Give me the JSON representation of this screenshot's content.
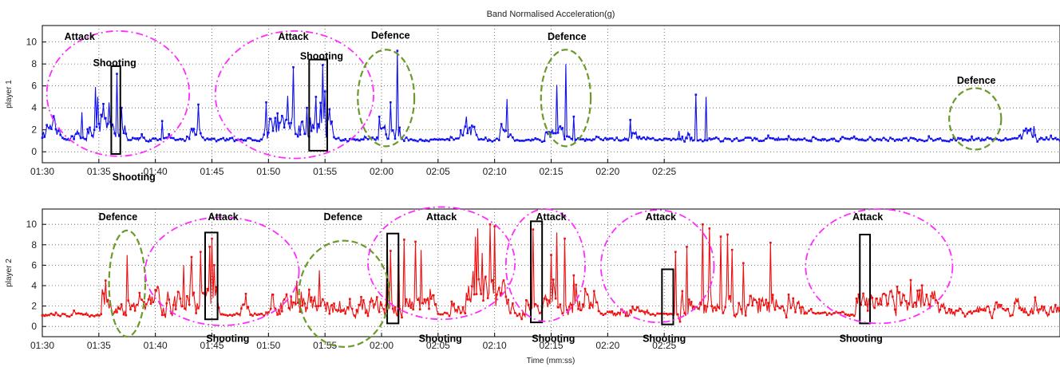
{
  "figure": {
    "title": "Band Normalised Acceleration(g)",
    "xlabel": "Time (mm:ss)"
  },
  "chart_data": [
    {
      "type": "line",
      "ylabel": "player 1",
      "color": "#1010ee",
      "xlim": [
        90,
        180
      ],
      "ylim": [
        -1,
        11.5
      ],
      "yticks": [
        0,
        2,
        4,
        6,
        8,
        10
      ],
      "xticks": [
        "01:30",
        "01:35",
        "01:40",
        "01:45",
        "01:50",
        "01:55",
        "02:00",
        "02:05",
        "02:10",
        "02:15",
        "02:20",
        "02:25"
      ],
      "grid": true,
      "seed": 7,
      "baseline": 1.1,
      "noise": 0.35,
      "bursts": [
        {
          "from": 90,
          "to": 91.6,
          "level": 2.0,
          "amp": 1.6
        },
        {
          "from": 92.6,
          "to": 93.2,
          "level": 1.6,
          "amp": 1.0
        },
        {
          "from": 94,
          "to": 96.5,
          "level": 2.0,
          "amp": 2.0
        },
        {
          "from": 96.5,
          "to": 97.5,
          "level": 2.2,
          "amp": 2.2
        },
        {
          "from": 103,
          "to": 104,
          "level": 1.8,
          "amp": 1.2
        },
        {
          "from": 109.5,
          "to": 114,
          "level": 2.2,
          "amp": 2.2
        },
        {
          "from": 114,
          "to": 115.6,
          "level": 2.5,
          "amp": 2.5
        },
        {
          "from": 119.5,
          "to": 121.4,
          "level": 1.8,
          "amp": 1.6
        },
        {
          "from": 127,
          "to": 128.3,
          "level": 1.8,
          "amp": 1.2
        },
        {
          "from": 130.5,
          "to": 131.3,
          "level": 1.6,
          "amp": 1.0
        },
        {
          "from": 134.5,
          "to": 136.3,
          "level": 1.6,
          "amp": 1.2
        },
        {
          "from": 142,
          "to": 142.5,
          "level": 1.6,
          "amp": 0.8
        },
        {
          "from": 146.5,
          "to": 147.5,
          "level": 1.5,
          "amp": 1.4
        },
        {
          "from": 176.5,
          "to": 178,
          "level": 1.5,
          "amp": 1.2
        }
      ],
      "spikes": [
        {
          "t": 94.7,
          "v": 5.9
        },
        {
          "t": 94.9,
          "v": 5.0
        },
        {
          "t": 93.5,
          "v": 3.6
        },
        {
          "t": 96.6,
          "v": 7.1
        },
        {
          "t": 97.0,
          "v": 4.0
        },
        {
          "t": 100.6,
          "v": 2.8
        },
        {
          "t": 103.8,
          "v": 4.3
        },
        {
          "t": 109.8,
          "v": 4.5
        },
        {
          "t": 110.8,
          "v": 3.5
        },
        {
          "t": 111.7,
          "v": 5.1
        },
        {
          "t": 112.2,
          "v": 7.7
        },
        {
          "t": 113.4,
          "v": 4.0
        },
        {
          "t": 114.2,
          "v": 5.0
        },
        {
          "t": 114.8,
          "v": 7.9
        },
        {
          "t": 115.0,
          "v": 5.5
        },
        {
          "t": 120.8,
          "v": 4.5
        },
        {
          "t": 121.4,
          "v": 9.2
        },
        {
          "t": 121.6,
          "v": 2.2
        },
        {
          "t": 127.5,
          "v": 3.2
        },
        {
          "t": 131.1,
          "v": 4.8
        },
        {
          "t": 135.5,
          "v": 6.1
        },
        {
          "t": 136.3,
          "v": 8.0
        },
        {
          "t": 137.0,
          "v": 3.2
        },
        {
          "t": 142.0,
          "v": 2.9
        },
        {
          "t": 146.3,
          "v": 1.9
        },
        {
          "t": 147.8,
          "v": 5.2
        },
        {
          "t": 148.7,
          "v": 5.0
        }
      ],
      "annotations": [
        {
          "text": "Attack",
          "t": 93.3,
          "v": 10.2
        },
        {
          "text": "Shooting",
          "t": 96.4,
          "v": 7.8
        },
        {
          "text": "Shooting",
          "t": 98.1,
          "v": -2.6
        },
        {
          "text": "Attack",
          "t": 112.2,
          "v": 10.2
        },
        {
          "text": "Shooting",
          "t": 114.7,
          "v": 8.4
        },
        {
          "text": "Defence",
          "t": 120.8,
          "v": 10.3
        },
        {
          "text": "Defence",
          "t": 136.4,
          "v": 10.2
        },
        {
          "text": "Defence",
          "t": 172.6,
          "v": 6.2
        }
      ],
      "ellipses": [
        {
          "kind": "attack",
          "t": 96.7,
          "v": 5.3,
          "rt": 6.3,
          "rv": 5.7
        },
        {
          "kind": "attack",
          "t": 112.3,
          "v": 5.2,
          "rt": 7.0,
          "rv": 5.8
        },
        {
          "kind": "defence",
          "t": 120.4,
          "v": 4.9,
          "rt": 2.5,
          "rv": 4.4
        },
        {
          "kind": "defence",
          "t": 136.3,
          "v": 4.9,
          "rt": 2.2,
          "rv": 4.4
        },
        {
          "kind": "defence",
          "t": 172.5,
          "v": 3.0,
          "rt": 2.3,
          "rv": 2.8
        }
      ],
      "boxes": [
        {
          "t0": 96.1,
          "t1": 96.9,
          "v0": -0.2,
          "v1": 7.8
        },
        {
          "t0": 113.6,
          "t1": 115.2,
          "v0": 0.1,
          "v1": 8.4
        }
      ]
    },
    {
      "type": "line",
      "ylabel": "player 2",
      "color": "#ee1010",
      "xlim": [
        90,
        180
      ],
      "ylim": [
        -1,
        11.5
      ],
      "yticks": [
        0,
        2,
        4,
        6,
        8,
        10
      ],
      "xticks": [
        "01:30",
        "01:35",
        "01:40",
        "01:45",
        "01:50",
        "01:55",
        "02:00",
        "02:05",
        "02:10",
        "02:15",
        "02:20",
        "02:25"
      ],
      "grid": true,
      "seed": 13,
      "baseline": 1.15,
      "noise": 0.35,
      "bursts": [
        {
          "from": 95.3,
          "to": 96.0,
          "level": 2.2,
          "amp": 2.2
        },
        {
          "from": 96.0,
          "to": 99.0,
          "level": 1.7,
          "amp": 1.4
        },
        {
          "from": 99.2,
          "to": 105.5,
          "level": 2.5,
          "amp": 2.8
        },
        {
          "from": 107.5,
          "to": 108.5,
          "level": 1.6,
          "amp": 1.4
        },
        {
          "from": 110,
          "to": 116.5,
          "level": 2.0,
          "amp": 2.0
        },
        {
          "from": 116.5,
          "to": 119,
          "level": 1.6,
          "amp": 1.6
        },
        {
          "from": 119,
          "to": 125,
          "level": 1.9,
          "amp": 2.2
        },
        {
          "from": 126.2,
          "to": 127.2,
          "level": 1.6,
          "amp": 1.3
        },
        {
          "from": 127.5,
          "to": 131,
          "level": 3.4,
          "amp": 3.2
        },
        {
          "from": 131,
          "to": 133.8,
          "level": 1.6,
          "amp": 1.6
        },
        {
          "from": 134.2,
          "to": 139.3,
          "level": 1.9,
          "amp": 2.2
        },
        {
          "from": 140,
          "to": 143.5,
          "level": 1.4,
          "amp": 1.1
        },
        {
          "from": 146,
          "to": 150.8,
          "level": 1.8,
          "amp": 2.2
        },
        {
          "from": 150.8,
          "to": 155,
          "level": 1.9,
          "amp": 2.4
        },
        {
          "from": 155,
          "to": 158,
          "level": 1.6,
          "amp": 1.5
        },
        {
          "from": 162,
          "to": 169.6,
          "level": 2.3,
          "amp": 2.6
        },
        {
          "from": 169.6,
          "to": 180,
          "level": 1.5,
          "amp": 1.2
        }
      ],
      "spikes": [
        {
          "t": 95.6,
          "v": 4.5
        },
        {
          "t": 97.5,
          "v": 7.0
        },
        {
          "t": 102.5,
          "v": 6.0
        },
        {
          "t": 103.2,
          "v": 6.8
        },
        {
          "t": 104.0,
          "v": 7.3
        },
        {
          "t": 104.8,
          "v": 7.8
        },
        {
          "t": 105.0,
          "v": 8.6
        },
        {
          "t": 105.2,
          "v": 6.0
        },
        {
          "t": 108.0,
          "v": 3.2
        },
        {
          "t": 112.5,
          "v": 4.5
        },
        {
          "t": 114.5,
          "v": 5.5
        },
        {
          "t": 120.5,
          "v": 8.6
        },
        {
          "t": 120.8,
          "v": 7.4
        },
        {
          "t": 121.5,
          "v": 8.2
        },
        {
          "t": 122.0,
          "v": 8.5
        },
        {
          "t": 123.0,
          "v": 8.3
        },
        {
          "t": 123.5,
          "v": 7.5
        },
        {
          "t": 128.3,
          "v": 8.8
        },
        {
          "t": 128.5,
          "v": 9.6
        },
        {
          "t": 128.9,
          "v": 7.2
        },
        {
          "t": 129.6,
          "v": 10.0
        },
        {
          "t": 130.0,
          "v": 9.8
        },
        {
          "t": 133.4,
          "v": 9.5
        },
        {
          "t": 135.0,
          "v": 7.0
        },
        {
          "t": 135.5,
          "v": 9.2
        },
        {
          "t": 136.2,
          "v": 8.6
        },
        {
          "t": 137.0,
          "v": 5.0
        },
        {
          "t": 146.0,
          "v": 7.3
        },
        {
          "t": 147.0,
          "v": 7.8
        },
        {
          "t": 148.4,
          "v": 10.0
        },
        {
          "t": 149.0,
          "v": 9.6
        },
        {
          "t": 150.0,
          "v": 8.8
        },
        {
          "t": 150.6,
          "v": 9.0
        },
        {
          "t": 151.0,
          "v": 7.5
        },
        {
          "t": 152.0,
          "v": 6.2
        },
        {
          "t": 154.4,
          "v": 8.2
        }
      ],
      "annotations": [
        {
          "text": "Defence",
          "t": 96.7,
          "v": 10.4
        },
        {
          "text": "Attack",
          "t": 106.0,
          "v": 10.4
        },
        {
          "text": "Shooting",
          "t": 106.4,
          "v": -1.5
        },
        {
          "text": "Defence",
          "t": 116.6,
          "v": 10.4
        },
        {
          "text": "Attack",
          "t": 125.3,
          "v": 10.4
        },
        {
          "text": "Shooting",
          "t": 125.2,
          "v": -1.5
        },
        {
          "text": "Attack",
          "t": 135.0,
          "v": 10.4
        },
        {
          "text": "Shooting",
          "t": 135.2,
          "v": -1.5
        },
        {
          "text": "Attack",
          "t": 144.7,
          "v": 10.4
        },
        {
          "text": "Shooting",
          "t": 145.0,
          "v": -1.5
        },
        {
          "text": "Attack",
          "t": 163.0,
          "v": 10.4
        },
        {
          "text": "Shooting",
          "t": 162.4,
          "v": -1.5
        }
      ],
      "ellipses": [
        {
          "kind": "defence",
          "t": 97.5,
          "v": 4.2,
          "rt": 1.6,
          "rv": 5.2
        },
        {
          "kind": "attack",
          "t": 105.9,
          "v": 5.4,
          "rt": 6.8,
          "rv": 5.3
        },
        {
          "kind": "defence",
          "t": 116.7,
          "v": 3.2,
          "rt": 4.0,
          "rv": 5.2
        },
        {
          "kind": "attack",
          "t": 125.3,
          "v": 6.2,
          "rt": 6.5,
          "rv": 5.5
        },
        {
          "kind": "attack",
          "t": 134.5,
          "v": 6.0,
          "rt": 3.5,
          "rv": 5.5
        },
        {
          "kind": "attack",
          "t": 144.4,
          "v": 5.9,
          "rt": 5.0,
          "rv": 5.5
        },
        {
          "kind": "attack",
          "t": 164.0,
          "v": 5.9,
          "rt": 6.5,
          "rv": 5.6
        }
      ],
      "boxes": [
        {
          "t0": 104.4,
          "t1": 105.5,
          "v0": 0.7,
          "v1": 9.2
        },
        {
          "t0": 120.5,
          "t1": 121.5,
          "v0": 0.3,
          "v1": 9.1
        },
        {
          "t0": 133.2,
          "t1": 134.2,
          "v0": 0.4,
          "v1": 10.3
        },
        {
          "t0": 144.8,
          "t1": 145.8,
          "v0": 0.2,
          "v1": 5.6
        },
        {
          "t0": 162.3,
          "t1": 163.2,
          "v0": 0.3,
          "v1": 9.0
        }
      ]
    }
  ],
  "styles": {
    "attack_color": "#ff2bff",
    "defence_color": "#6b9a2a",
    "grid_color": "#555555",
    "box_color": "#000000"
  }
}
